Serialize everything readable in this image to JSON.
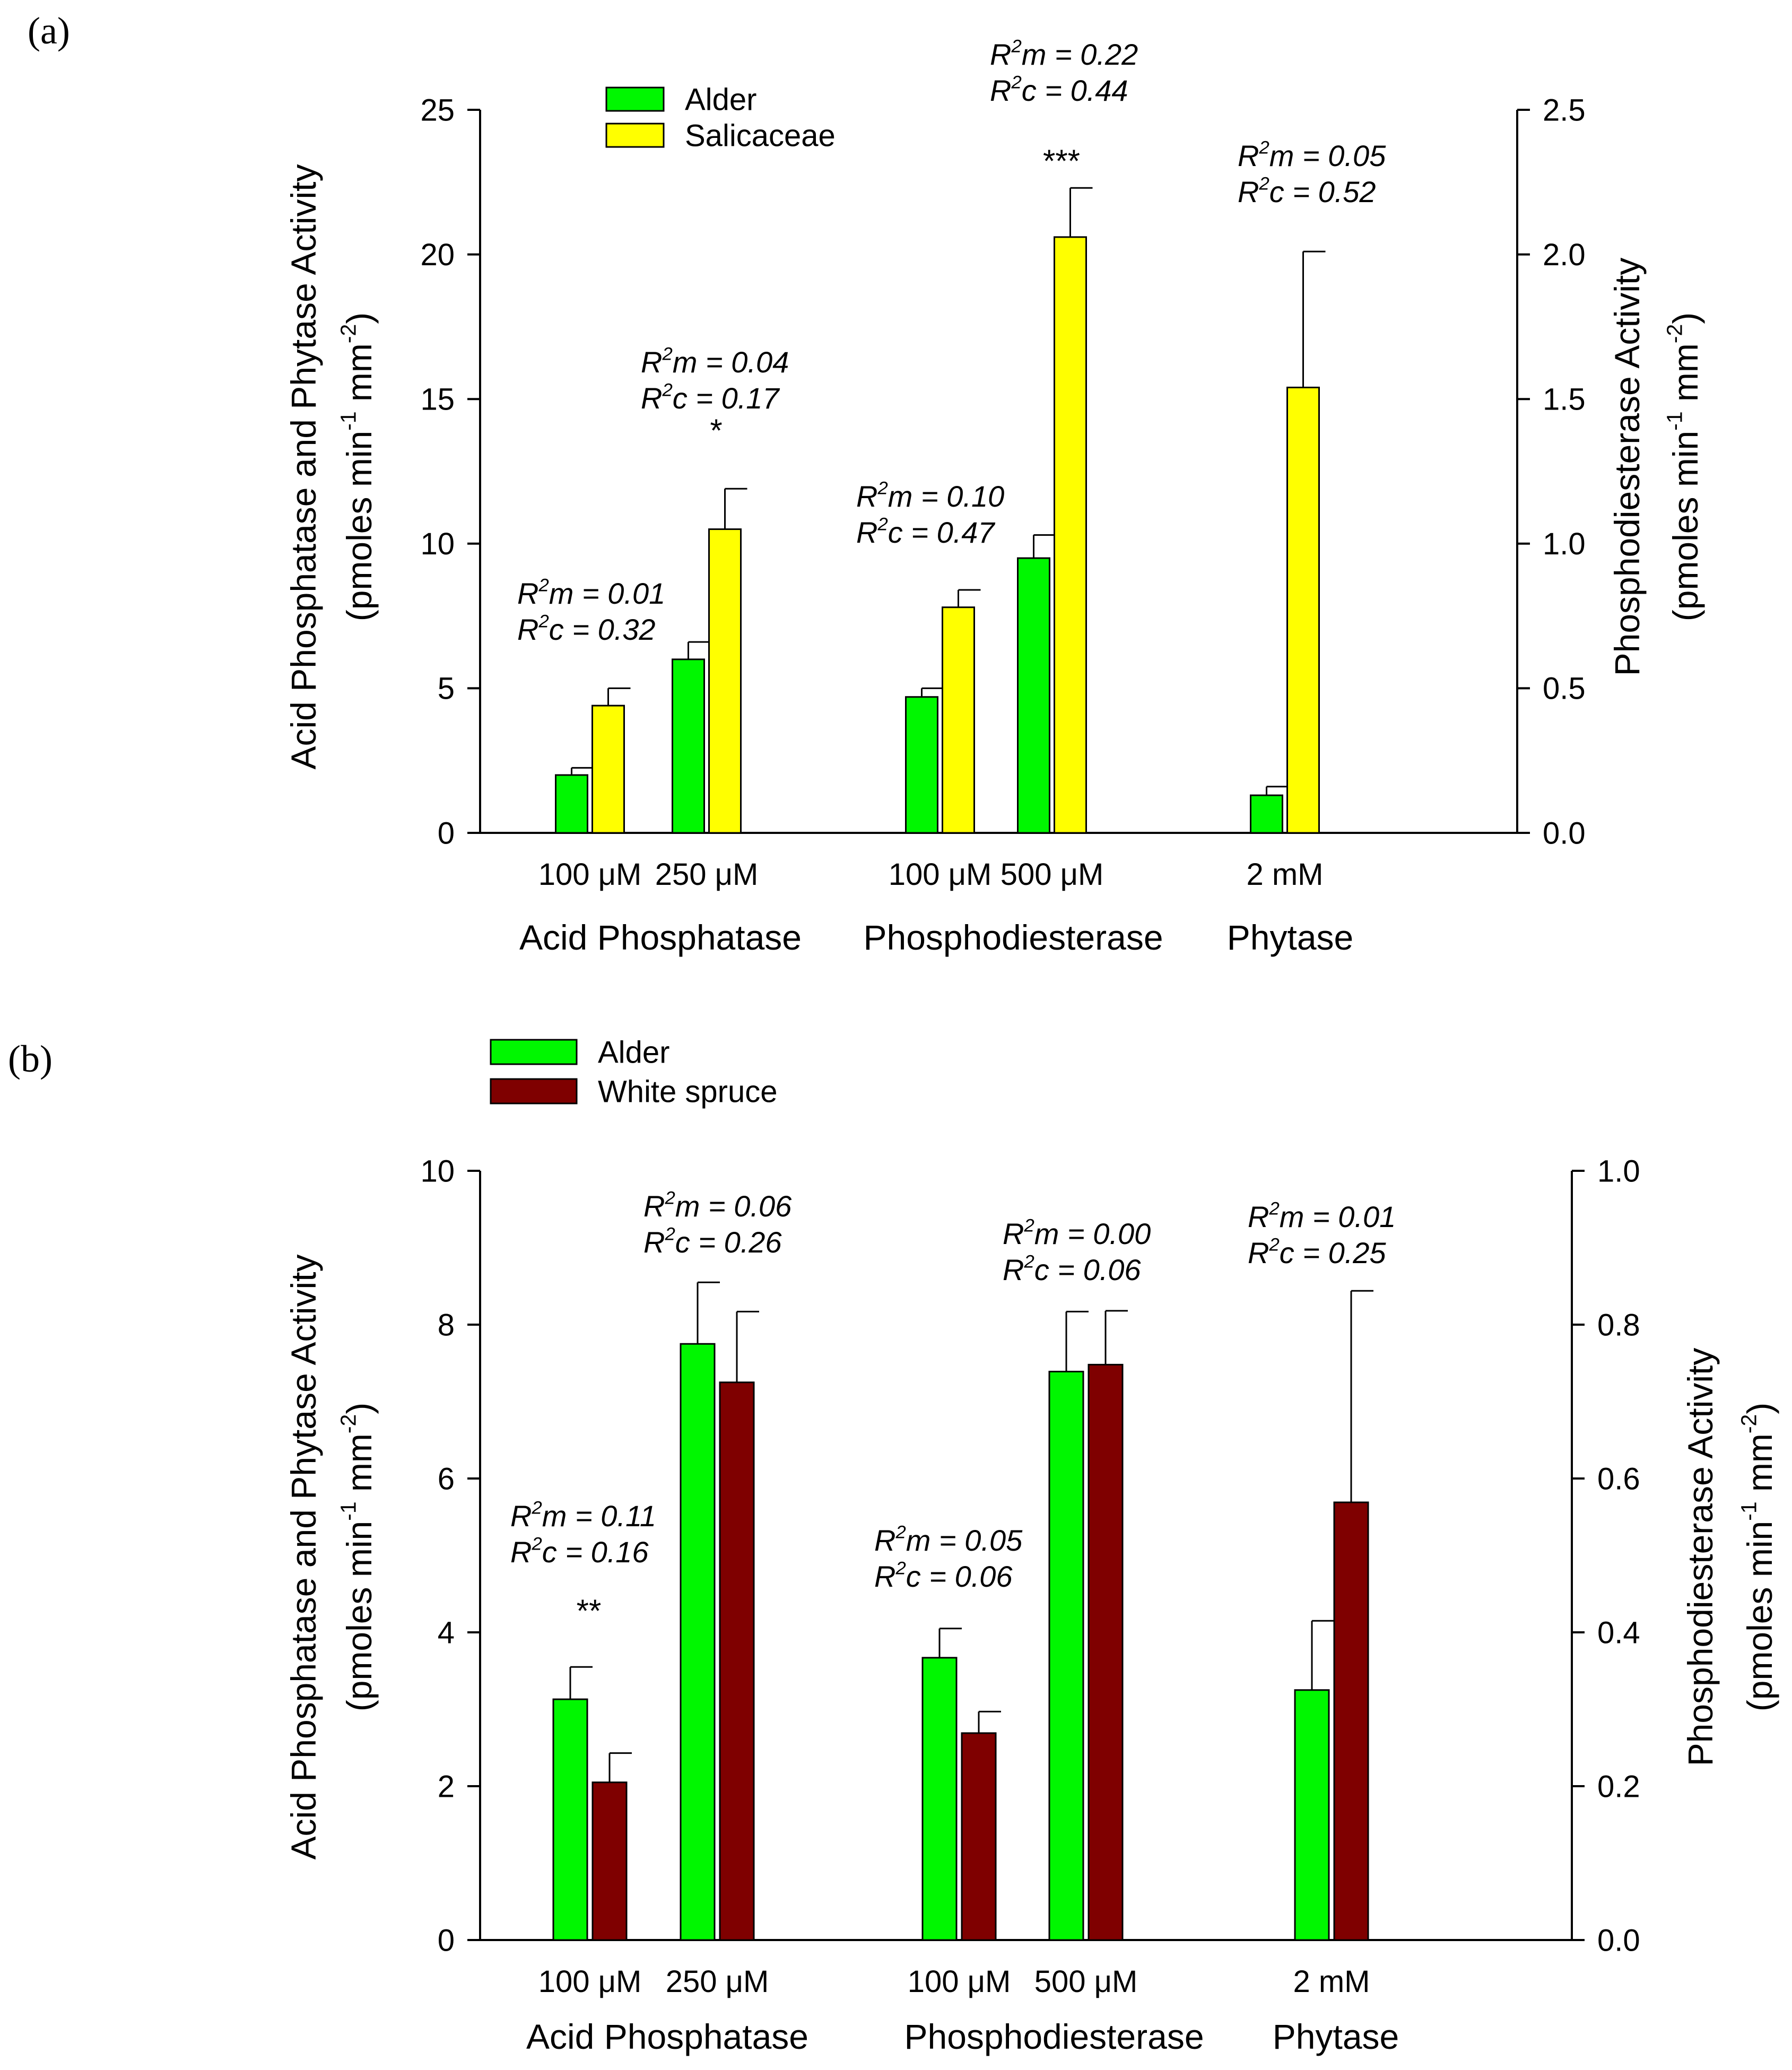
{
  "colors": {
    "alder": "#00f700",
    "salicaceae": "#ffff00",
    "white_spruce": "#7f0000",
    "axis": "#000000"
  },
  "chart_data": [
    {
      "panel_label": "(a)",
      "type": "bar",
      "ylabel_left": "Acid Phosphatase and Phytase Activity",
      "ylabel_left_units": "(pmoles min-1 mm-2)",
      "ylabel_right": "Phosphodiesterase Activity",
      "ylabel_right_units": "(pmoles min-1 mm-2)",
      "ylim_left": [
        0,
        25
      ],
      "yticks_left": [
        "0",
        "5",
        "10",
        "15",
        "20",
        "25"
      ],
      "ylim_right": [
        0,
        2.5
      ],
      "yticks_right": [
        "0.0",
        "0.5",
        "1.0",
        "1.5",
        "2.0",
        "2.5"
      ],
      "legend": [
        "Alder",
        "Salicaceae"
      ],
      "categories": [
        "100 μM",
        "250 μM",
        "100 μM",
        "500 μM",
        "2 mM"
      ],
      "groups": [
        {
          "name": "Acid Phosphatase",
          "categories": [
            "100 μM",
            "250 μM"
          ]
        },
        {
          "name": "Phosphodiesterase",
          "categories": [
            "100 μM",
            "500 μM"
          ]
        },
        {
          "name": "Phytase",
          "categories": [
            "2 mM"
          ]
        }
      ],
      "series": [
        {
          "name": "Alder",
          "values": [
            2.0,
            6.0,
            4.7,
            9.5,
            1.3
          ],
          "errors": [
            0.25,
            0.6,
            0.3,
            0.8,
            0.3
          ]
        },
        {
          "name": "Salicaceae",
          "values": [
            4.4,
            10.5,
            7.8,
            20.6,
            15.4
          ],
          "errors": [
            0.6,
            1.4,
            0.6,
            1.7,
            4.7
          ]
        }
      ],
      "annotations": [
        {
          "category": "100 μM",
          "r2m": "0.01",
          "r2c": "0.32",
          "sig": ""
        },
        {
          "category": "250 μM",
          "r2m": "0.04",
          "r2c": "0.17",
          "sig": "*"
        },
        {
          "category": "100 μM",
          "r2m": "0.10",
          "r2c": "0.47",
          "sig": ""
        },
        {
          "category": "500 μM",
          "r2m": "0.22",
          "r2c": "0.44",
          "sig": "***"
        },
        {
          "category": "2 mM",
          "r2m": "0.05",
          "r2c": "0.52",
          "sig": ""
        }
      ]
    },
    {
      "panel_label": "(b)",
      "type": "bar",
      "ylabel_left": "Acid Phosphatase and Phytase Activity",
      "ylabel_left_units": "(pmoles min-1 mm-2)",
      "ylabel_right": "Phosphodiesterase Activity",
      "ylabel_right_units": "(pmoles min-1 mm-2)",
      "ylim_left": [
        0,
        10
      ],
      "yticks_left": [
        "0",
        "2",
        "4",
        "6",
        "8",
        "10"
      ],
      "ylim_right": [
        0,
        1.0
      ],
      "yticks_right": [
        "0.0",
        "0.2",
        "0.4",
        "0.6",
        "0.8",
        "1.0"
      ],
      "legend": [
        "Alder",
        "White spruce"
      ],
      "categories": [
        "100 μM",
        "250 μM",
        "100 μM",
        "500 μM",
        "2 mM"
      ],
      "groups": [
        {
          "name": "Acid Phosphatase",
          "categories": [
            "100 μM",
            "250 μM"
          ]
        },
        {
          "name": "Phosphodiesterase",
          "categories": [
            "100 μM",
            "500 μM"
          ]
        },
        {
          "name": "Phytase",
          "categories": [
            "2 mM"
          ]
        }
      ],
      "series": [
        {
          "name": "Alder",
          "values": [
            3.13,
            7.75,
            3.67,
            7.39,
            3.25
          ],
          "errors": [
            0.42,
            0.8,
            0.38,
            0.78,
            0.9
          ]
        },
        {
          "name": "White spruce",
          "values": [
            2.05,
            7.25,
            2.69,
            7.48,
            5.69
          ],
          "errors": [
            0.38,
            0.92,
            0.28,
            0.7,
            2.75
          ]
        }
      ],
      "annotations": [
        {
          "category": "100 μM",
          "r2m": "0.11",
          "r2c": "0.16",
          "sig": "**"
        },
        {
          "category": "250 μM",
          "r2m": "0.06",
          "r2c": "0.26",
          "sig": ""
        },
        {
          "category": "100 μM",
          "r2m": "0.05",
          "r2c": "0.06",
          "sig": ""
        },
        {
          "category": "500 μM",
          "r2m": "0.00",
          "r2c": "0.06",
          "sig": ""
        },
        {
          "category": "2 mM",
          "r2m": "0.01",
          "r2c": "0.25",
          "sig": ""
        }
      ]
    }
  ]
}
